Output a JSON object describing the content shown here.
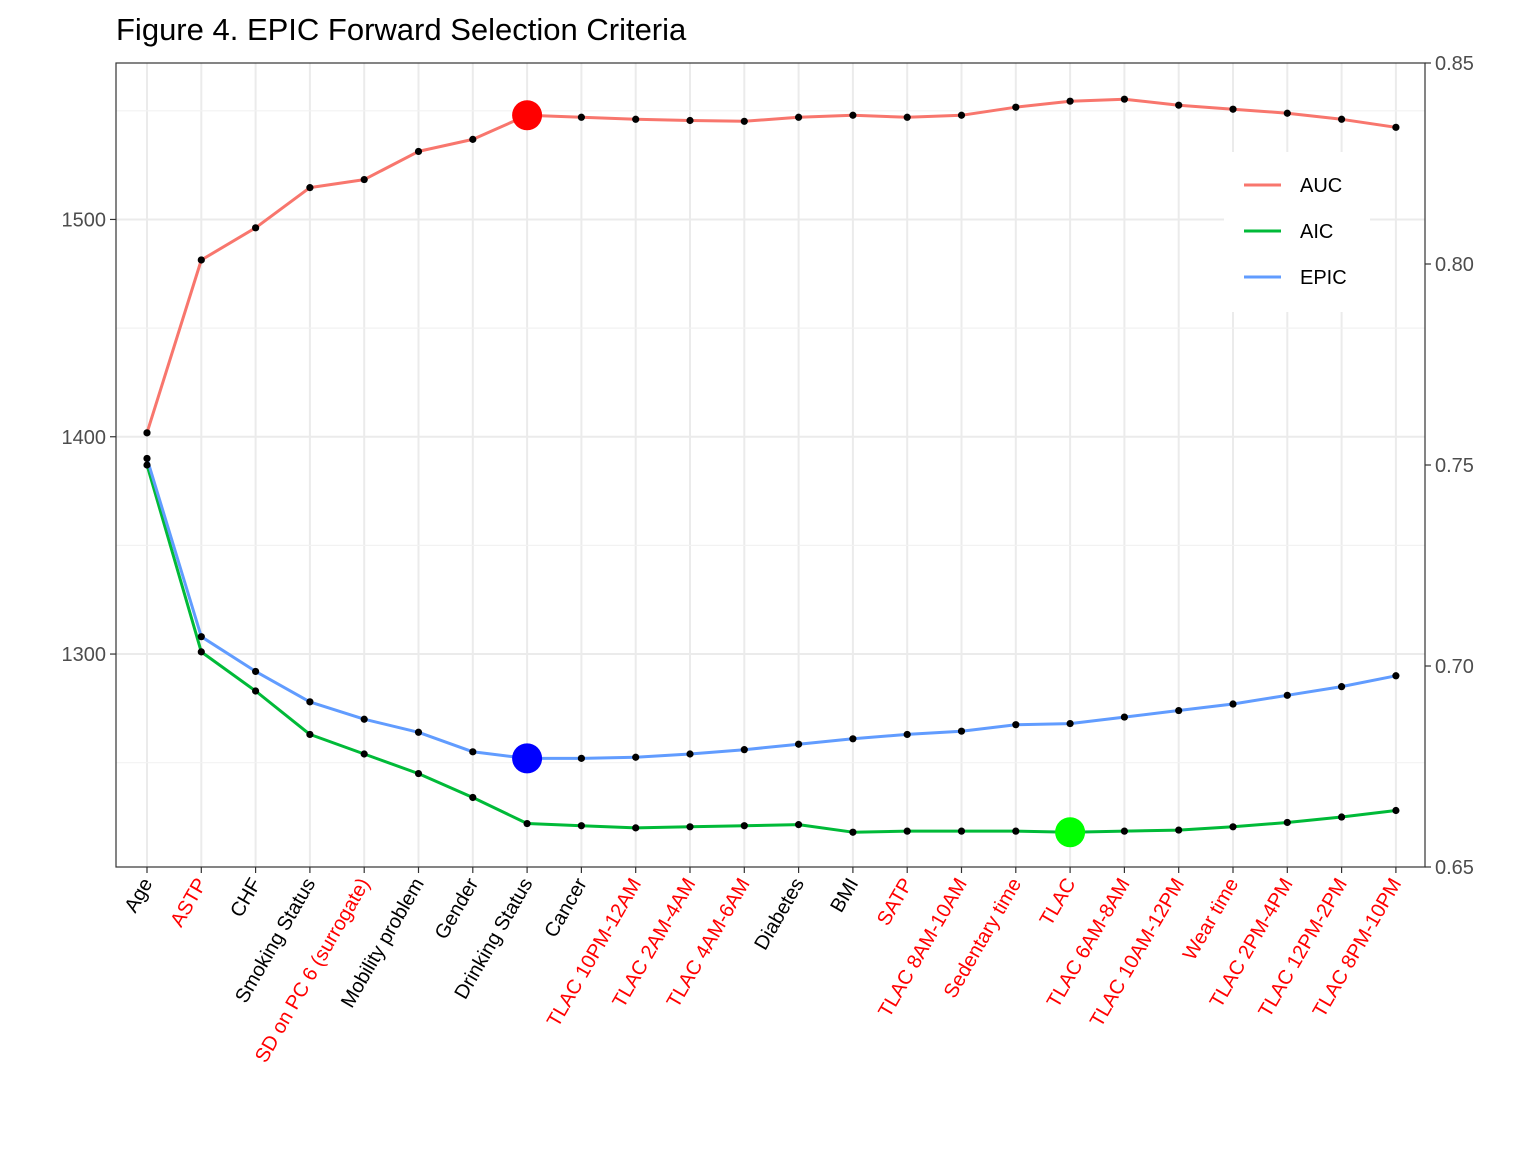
{
  "chart_data": {
    "type": "line",
    "title": "Figure 4. EPIC Forward Selection Criteria",
    "xlabel": "",
    "ylabel": "",
    "y_left": {
      "lim": [
        1202,
        1572
      ],
      "ticks": [
        1300,
        1400,
        1500
      ]
    },
    "y_right": {
      "lim": [
        0.65,
        0.85
      ],
      "ticks": [
        "0.65",
        "0.70",
        "0.75",
        "0.80",
        "0.85"
      ]
    },
    "categories": [
      "Age",
      "ASTP",
      "CHF",
      "Smoking Status",
      "SD on PC 6 (surrogate)",
      "Mobility problem",
      "Gender",
      "Drinking Status",
      "Cancer",
      "TLAC 10PM-12AM",
      "TLAC 2AM-4AM",
      "TLAC 4AM-6AM",
      "Diabetes",
      "BMI",
      "SATP",
      "TLAC 8AM-10AM",
      "Sedentary time",
      "TLAC",
      "TLAC 6AM-8AM",
      "TLAC 10AM-12PM",
      "Wear time",
      "TLAC 2PM-4PM",
      "TLAC 12PM-2PM",
      "TLAC 8PM-10PM"
    ],
    "category_colors": [
      "#000000",
      "#ff0000",
      "#000000",
      "#000000",
      "#ff0000",
      "#000000",
      "#000000",
      "#000000",
      "#000000",
      "#ff0000",
      "#ff0000",
      "#ff0000",
      "#000000",
      "#000000",
      "#ff0000",
      "#ff0000",
      "#ff0000",
      "#ff0000",
      "#ff0000",
      "#ff0000",
      "#ff0000",
      "#ff0000",
      "#ff0000",
      "#ff0000"
    ],
    "series": [
      {
        "name": "AUC",
        "axis": "right",
        "color": "#f8766d",
        "values": [
          0.758,
          0.801,
          0.809,
          0.819,
          0.821,
          0.828,
          0.831,
          0.837,
          0.8365,
          0.836,
          0.8357,
          0.8355,
          0.8365,
          0.837,
          0.8365,
          0.837,
          0.839,
          0.8405,
          0.841,
          0.8395,
          0.8385,
          0.8375,
          0.836,
          0.834
        ],
        "highlight": {
          "index": 7,
          "color": "#ff0000"
        }
      },
      {
        "name": "AIC",
        "axis": "left",
        "color": "#00ba38",
        "values": [
          1387,
          1301,
          1283,
          1263,
          1254,
          1245,
          1234,
          1222,
          1221,
          1220,
          1220.5,
          1221,
          1221.5,
          1218,
          1218.5,
          1218.5,
          1218.5,
          1218,
          1218.5,
          1219,
          1220.5,
          1222.5,
          1225,
          1228
        ],
        "highlight": {
          "index": 17,
          "color": "#00ff00"
        }
      },
      {
        "name": "EPIC",
        "axis": "left",
        "color": "#619cff",
        "values": [
          1390,
          1308,
          1292,
          1278,
          1270,
          1264,
          1255,
          1252,
          1252,
          1252.5,
          1254,
          1256,
          1258.5,
          1261,
          1263,
          1264.5,
          1267.5,
          1268,
          1271,
          1274,
          1277,
          1281,
          1285,
          1290
        ],
        "highlight": {
          "index": 7,
          "color": "#0000ff"
        }
      }
    ],
    "legend": {
      "position": "top-right",
      "entries": [
        "AUC",
        "AIC",
        "EPIC"
      ]
    },
    "grid": true
  }
}
